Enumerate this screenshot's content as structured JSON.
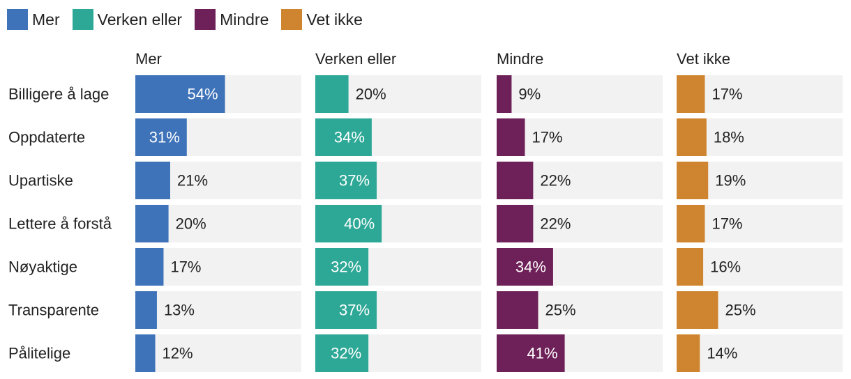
{
  "chart_data": {
    "type": "bar",
    "categories": [
      "Billigere å lage",
      "Oppdaterte",
      "Upartiske",
      "Lettere å forstå",
      "Nøyaktige",
      "Transparente",
      "Pålitelige"
    ],
    "series": [
      {
        "name": "Mer",
        "color": "#3e73b9",
        "values": [
          54,
          31,
          21,
          20,
          17,
          13,
          12
        ],
        "labels": [
          "54%",
          "31%",
          "21%",
          "20%",
          "17%",
          "13%",
          "12%"
        ]
      },
      {
        "name": "Verken eller",
        "color": "#2ea896",
        "values": [
          20,
          34,
          37,
          40,
          32,
          37,
          32
        ],
        "labels": [
          "20%",
          "34%",
          "37%",
          "40%",
          "32%",
          "37%",
          "32%"
        ]
      },
      {
        "name": "Mindre",
        "color": "#6e2158",
        "values": [
          9,
          17,
          22,
          22,
          34,
          25,
          41
        ],
        "labels": [
          "9%",
          "17%",
          "22%",
          "22%",
          "34%",
          "25%",
          "41%"
        ]
      },
      {
        "name": "Vet ikke",
        "color": "#cf8530",
        "values": [
          17,
          18,
          19,
          17,
          16,
          25,
          14
        ],
        "labels": [
          "17%",
          "18%",
          "19%",
          "17%",
          "16%",
          "25%",
          "14%"
        ]
      }
    ],
    "xlim": [
      0,
      100
    ],
    "legend": "top-left",
    "grid": false,
    "track_color": "#f2f2f2"
  }
}
